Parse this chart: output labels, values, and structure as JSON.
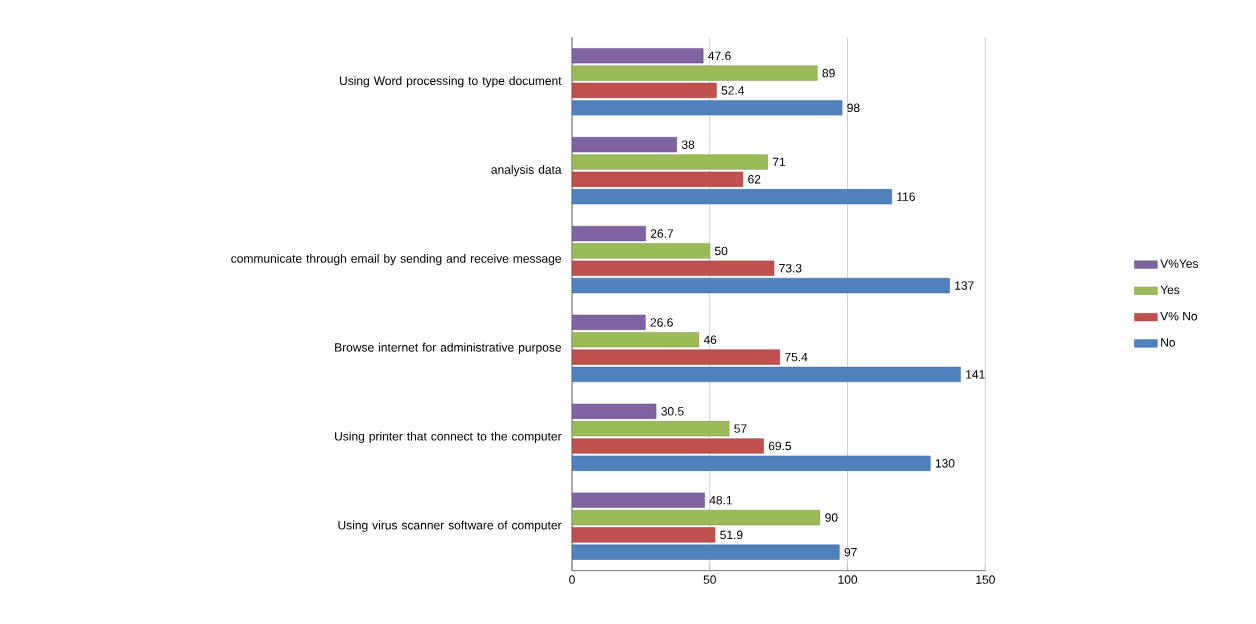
{
  "chart_data": {
    "type": "bar",
    "orientation": "horizontal",
    "categories": [
      "Using Word processing to type document",
      "analysis data",
      "communicate through email by sending and receive message",
      "Browse internet  for administrative purpose",
      "Using printer that connect to the computer",
      "Using virus scanner software of  computer"
    ],
    "series": [
      {
        "name": "V%Yes",
        "color": "#8064a2",
        "values": [
          47.6,
          38,
          26.7,
          26.6,
          30.5,
          48.1
        ]
      },
      {
        "name": "Yes",
        "color": "#9bbb59",
        "values": [
          89,
          71,
          50,
          46,
          57,
          90
        ]
      },
      {
        "name": "V% No",
        "color": "#c0504d",
        "values": [
          52.4,
          62,
          73.3,
          75.4,
          69.5,
          51.9
        ]
      },
      {
        "name": "No",
        "color": "#4f81bd",
        "values": [
          98,
          116,
          137,
          141,
          130,
          97
        ]
      }
    ],
    "xlim": [
      0,
      150
    ],
    "xticks": [
      0,
      50,
      100,
      150
    ],
    "grid": "x",
    "legend": "right",
    "data_labels": true
  }
}
